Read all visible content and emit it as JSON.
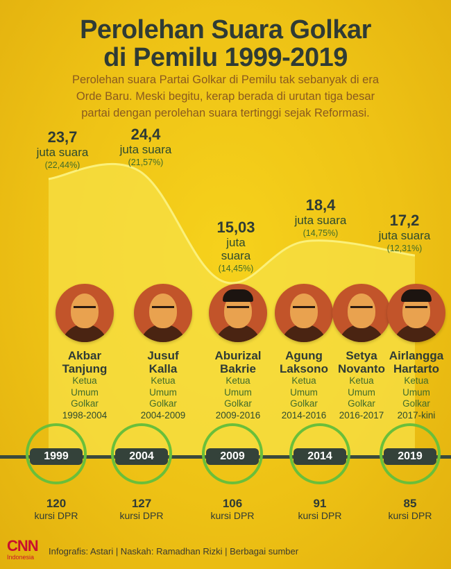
{
  "header": {
    "title_line1": "Perolehan Suara Golkar",
    "title_line2": "di Pemilu 1999-2019",
    "subtitle_line1": "Perolehan suara Partai Golkar di Pemilu tak sebanyak di era",
    "subtitle_line2": "Orde Baru. Meski begitu, kerap berada di urutan tiga besar",
    "subtitle_line3": "partai dengan perolehan suara tertinggi sejak Reformasi."
  },
  "chart_data": {
    "type": "area",
    "x": [
      "1999",
      "2004",
      "2009",
      "2014",
      "2019"
    ],
    "values": [
      23.7,
      24.4,
      15.03,
      18.4,
      17.2
    ],
    "value_labels": [
      "23,7",
      "24,4",
      "15,03",
      "18,4",
      "17,2"
    ],
    "unit": "juta suara",
    "percent_labels": [
      "(22,44%)",
      "(21,57%)",
      "(14,45%)",
      "(14,75%)",
      "(12,31%)"
    ],
    "seats": [
      "120",
      "127",
      "106",
      "91",
      "85"
    ],
    "seat_unit": "kursi DPR",
    "ylim": [
      0,
      30
    ],
    "area_color": "#f7e046",
    "line_color": "#fbf07a"
  },
  "leaders": [
    {
      "first": "Akbar",
      "last": "Tanjung",
      "role1": "Ketua",
      "role2": "Umum",
      "role3": "Golkar",
      "period": "1998-2004"
    },
    {
      "first": "Jusuf",
      "last": "Kalla",
      "role1": "Ketua",
      "role2": "Umum",
      "role3": "Golkar",
      "period": "2004-2009"
    },
    {
      "first": "Aburizal",
      "last": "Bakrie",
      "role1": "Ketua",
      "role2": "Umum",
      "role3": "Golkar",
      "period": "2009-2016"
    },
    {
      "first": "Agung",
      "last": "Laksono",
      "role1": "Ketua",
      "role2": "Umum",
      "role3": "Golkar",
      "period": "2014-2016"
    },
    {
      "first": "Setya",
      "last": "Novanto",
      "role1": "Ketua",
      "role2": "Umum",
      "role3": "Golkar",
      "period": "2016-2017"
    },
    {
      "first": "Airlangga",
      "last": "Hartarto",
      "role1": "Ketua",
      "role2": "Umum",
      "role3": "Golkar",
      "period": "2017-kini"
    }
  ],
  "footer": {
    "logo_main": "CNN",
    "logo_sub": "Indonesia",
    "credits": "Infografis: Astari | Naskah: Ramadhan Rizki | Berbagai sumber"
  },
  "colors": {
    "background": "#eec215",
    "title": "#2f3b35",
    "subtitle": "#8a5a1f",
    "ring": "#6abf3a",
    "year_box": "#34423a",
    "brand_red": "#c8102e"
  }
}
